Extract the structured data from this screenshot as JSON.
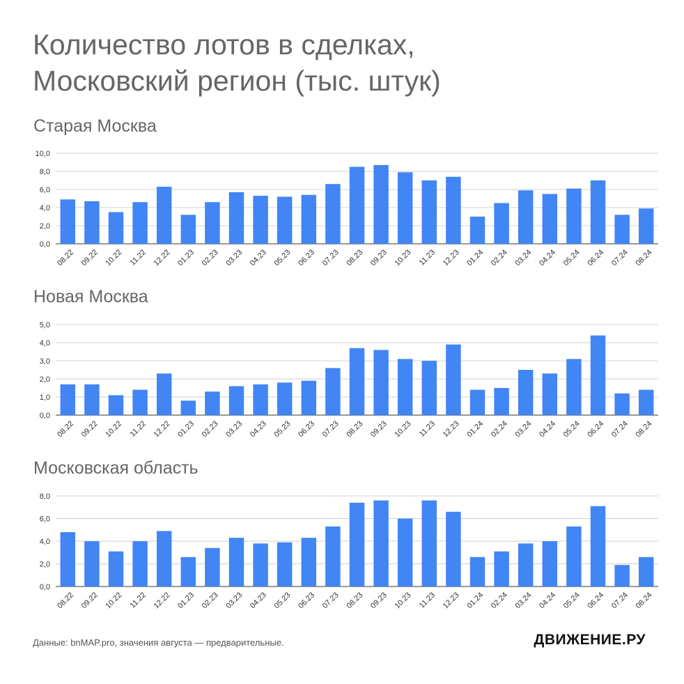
{
  "title_line1": "Количество лотов в сделках,",
  "title_line2": "Московский регион (тыс. штук)",
  "footer": "Данные: bnMAP.pro, значения августа — предварительные.",
  "brand": "ДВИЖЕНИЕ.РУ",
  "bar_color": "#4285f4",
  "chart_data": [
    {
      "type": "bar",
      "title": "Старая Москва",
      "categories": [
        "08.22",
        "09.22",
        "10.22",
        "11.22",
        "12.22",
        "01.23",
        "02.23",
        "03.23",
        "04.23",
        "05.23",
        "06.23",
        "07.23",
        "08.23",
        "09.23",
        "10.23",
        "11.23",
        "12.23",
        "01.24",
        "02.24",
        "03.24",
        "04.24",
        "05.24",
        "06.24",
        "07.24",
        "08.24"
      ],
      "values": [
        4.9,
        4.7,
        3.5,
        4.6,
        6.3,
        3.2,
        4.6,
        5.7,
        5.3,
        5.2,
        5.4,
        6.6,
        8.5,
        8.7,
        7.9,
        7.0,
        7.4,
        3.0,
        4.5,
        5.9,
        5.5,
        6.1,
        7.0,
        3.2,
        3.9
      ],
      "ylim": [
        0,
        10
      ],
      "yticks": [
        "0,0",
        "2,0",
        "4,0",
        "6,0",
        "8,0",
        "10,0"
      ],
      "grid": true
    },
    {
      "type": "bar",
      "title": "Новая Москва",
      "categories": [
        "08.22",
        "09.22",
        "10.22",
        "11.22",
        "12.22",
        "01.23",
        "02.23",
        "03.23",
        "04.23",
        "05.23",
        "06.23",
        "07.23",
        "08.23",
        "09.23",
        "10.23",
        "11.23",
        "12.23",
        "01.24",
        "02.24",
        "03.24",
        "04.24",
        "05.24",
        "06.24",
        "07.24",
        "08.24"
      ],
      "values": [
        1.7,
        1.7,
        1.1,
        1.4,
        2.3,
        0.8,
        1.3,
        1.6,
        1.7,
        1.8,
        1.9,
        2.6,
        3.7,
        3.6,
        3.1,
        3.0,
        3.9,
        1.4,
        1.5,
        2.5,
        2.3,
        3.1,
        4.4,
        1.2,
        1.4
      ],
      "ylim": [
        0,
        5
      ],
      "yticks": [
        "0,0",
        "1,0",
        "2,0",
        "3,0",
        "4,0",
        "5,0"
      ],
      "grid": true
    },
    {
      "type": "bar",
      "title": "Московская область",
      "categories": [
        "08.22",
        "09.22",
        "10.22",
        "11.22",
        "12.22",
        "01.23",
        "02.23",
        "03.23",
        "04.23",
        "05.23",
        "06.23",
        "07.23",
        "08.23",
        "09.23",
        "10.23",
        "11.23",
        "12.23",
        "01.24",
        "02.24",
        "03.24",
        "04.24",
        "05.24",
        "06.24",
        "07.24",
        "08.24"
      ],
      "values": [
        4.8,
        4.0,
        3.1,
        4.0,
        4.9,
        2.6,
        3.4,
        4.3,
        3.8,
        3.9,
        4.3,
        5.3,
        7.4,
        7.6,
        6.0,
        7.6,
        6.6,
        2.6,
        3.1,
        3.8,
        4.0,
        5.3,
        7.1,
        1.9,
        2.6
      ],
      "ylim": [
        0,
        8
      ],
      "yticks": [
        "0,0",
        "2,0",
        "4,0",
        "6,0",
        "8,0"
      ],
      "grid": true
    }
  ]
}
